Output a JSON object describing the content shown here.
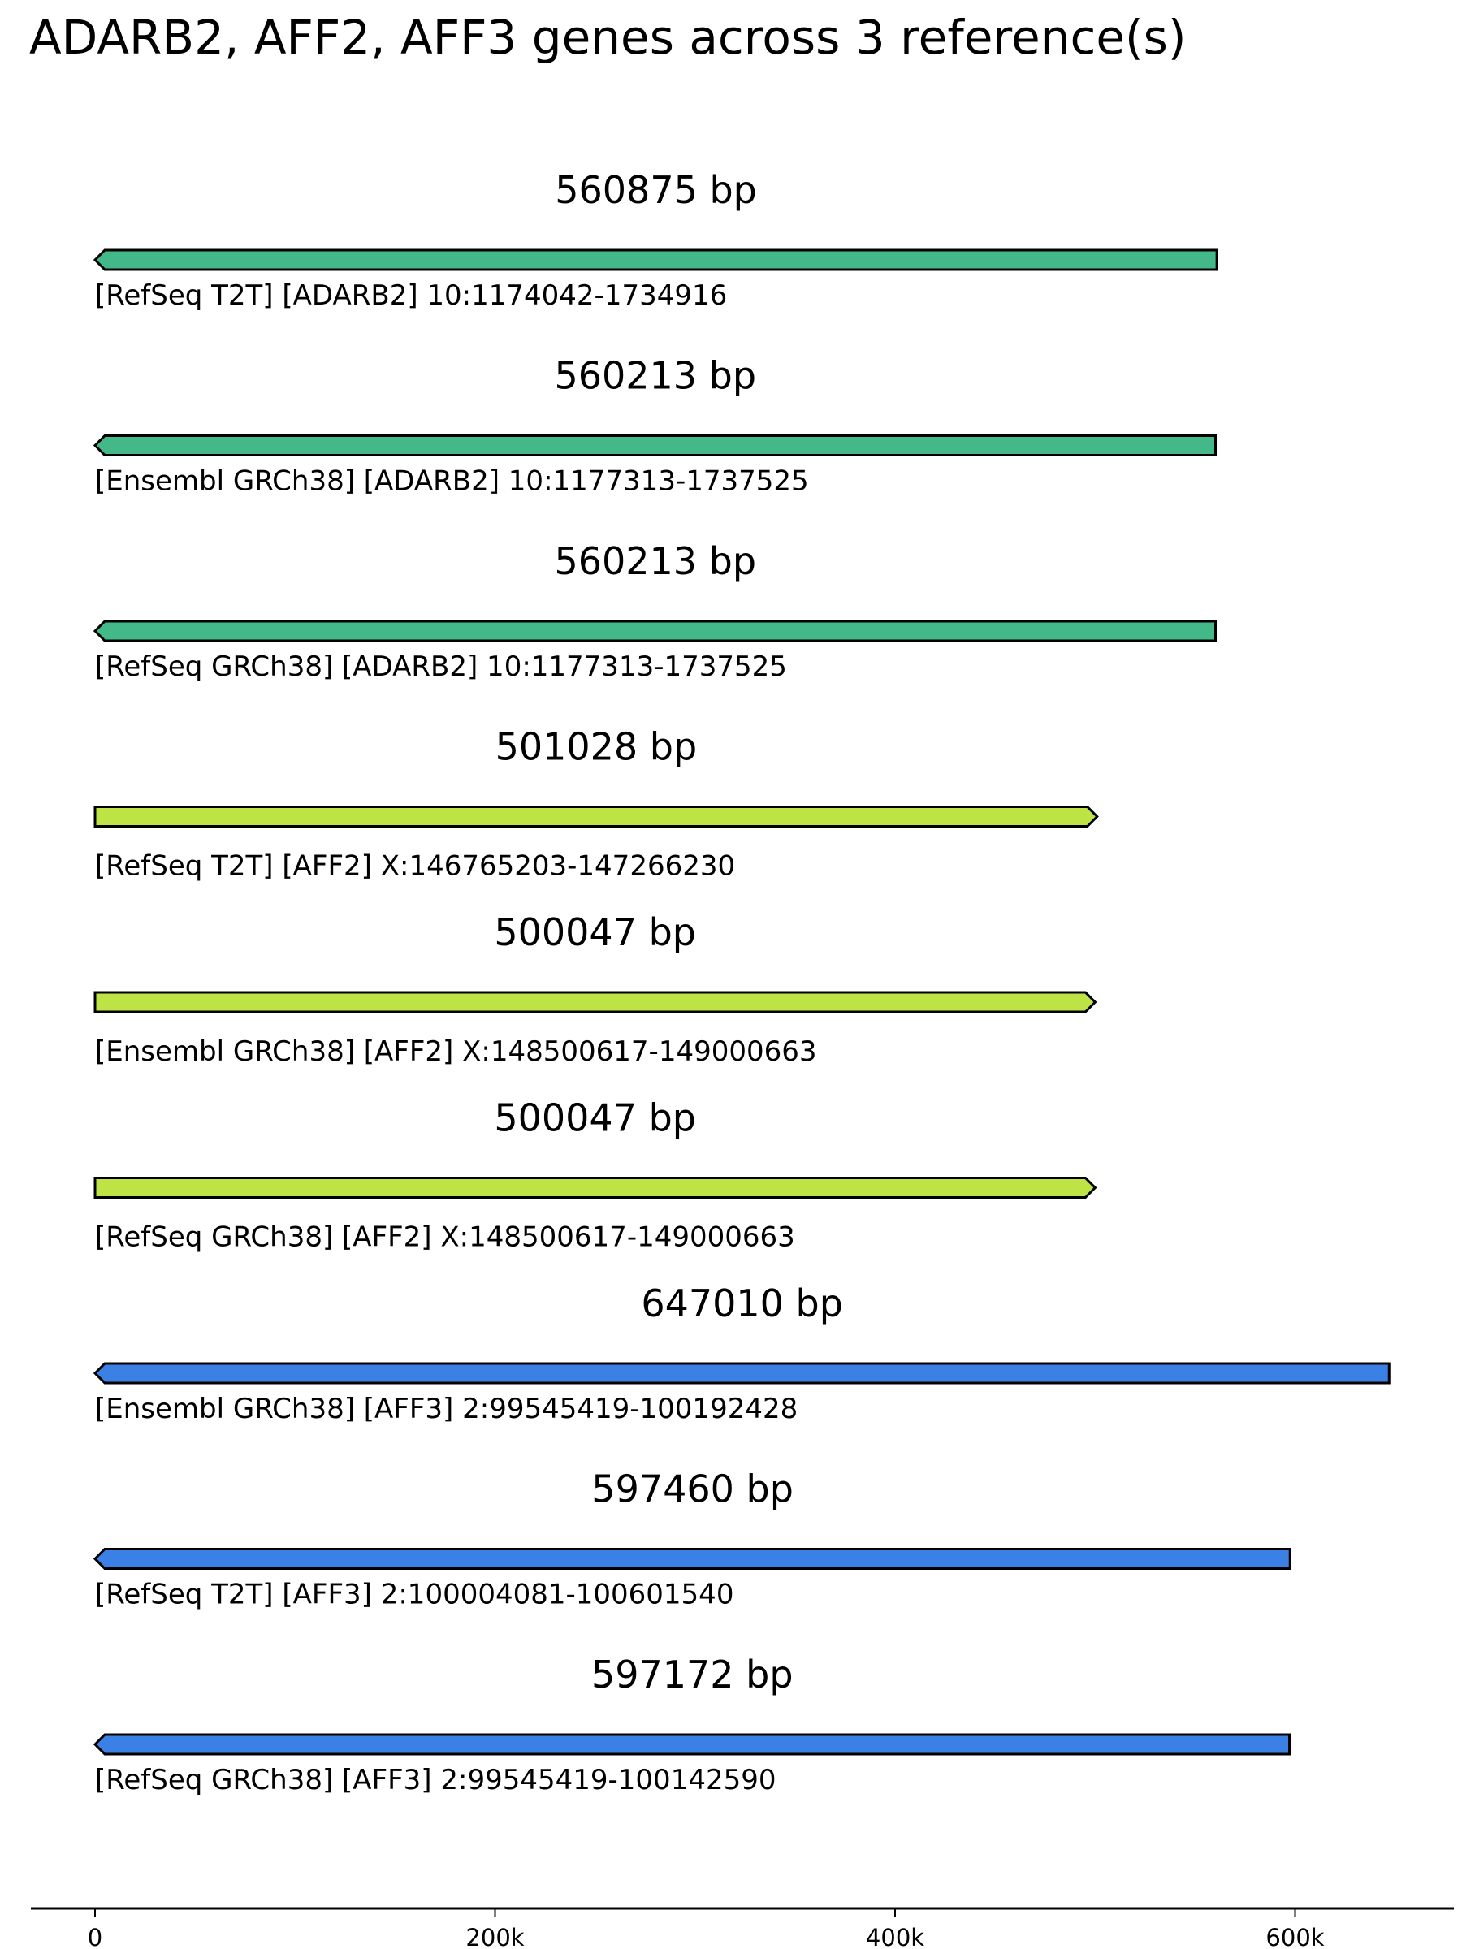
{
  "title": "ADARB2, AFF2, AFF3 genes across 3 reference(s)",
  "chart_data": {
    "type": "gene-track",
    "title": "ADARB2, AFF2, AFF3 genes across 3 reference(s)",
    "x_ticks": [
      {
        "value": 0,
        "label": "0"
      },
      {
        "value": 200000,
        "label": "200k"
      },
      {
        "value": 400000,
        "label": "400k"
      },
      {
        "value": 600000,
        "label": "600k"
      }
    ],
    "xlim": [
      -32000,
      680000
    ],
    "colors": {
      "ADARB2": "#43b98a",
      "AFF2": "#bde444",
      "AFF3": "#3b80e4"
    },
    "tracks": [
      {
        "length": 560875,
        "length_label": "560875 bp",
        "gene": "ADARB2",
        "strand": "-",
        "label": "[RefSeq T2T] [ADARB2] 10:1174042-1734916"
      },
      {
        "length": 560213,
        "length_label": "560213 bp",
        "gene": "ADARB2",
        "strand": "-",
        "label": "[Ensembl GRCh38] [ADARB2] 10:1177313-1737525"
      },
      {
        "length": 560213,
        "length_label": "560213 bp",
        "gene": "ADARB2",
        "strand": "-",
        "label": "[RefSeq GRCh38] [ADARB2] 10:1177313-1737525"
      },
      {
        "length": 501028,
        "length_label": "501028 bp",
        "gene": "AFF2",
        "strand": "+",
        "label": "[RefSeq T2T] [AFF2] X:146765203-147266230"
      },
      {
        "length": 500047,
        "length_label": "500047 bp",
        "gene": "AFF2",
        "strand": "+",
        "label": "[Ensembl GRCh38] [AFF2] X:148500617-149000663"
      },
      {
        "length": 500047,
        "length_label": "500047 bp",
        "gene": "AFF2",
        "strand": "+",
        "label": "[RefSeq GRCh38] [AFF2] X:148500617-149000663"
      },
      {
        "length": 647010,
        "length_label": "647010 bp",
        "gene": "AFF3",
        "strand": "-",
        "label": "[Ensembl GRCh38] [AFF3] 2:99545419-100192428"
      },
      {
        "length": 597460,
        "length_label": "597460 bp",
        "gene": "AFF3",
        "strand": "-",
        "label": "[RefSeq T2T] [AFF3] 2:100004081-100601540"
      },
      {
        "length": 597172,
        "length_label": "597172 bp",
        "gene": "AFF3",
        "strand": "-",
        "label": "[RefSeq GRCh38] [AFF3] 2:99545419-100142590"
      }
    ]
  }
}
